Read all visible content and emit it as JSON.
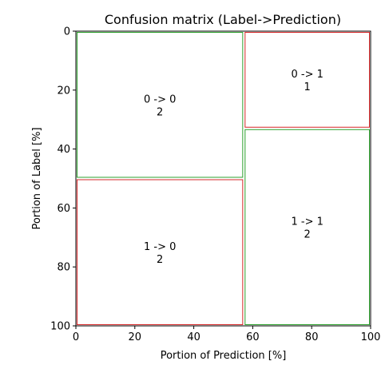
{
  "chart_data": {
    "type": "mosaic",
    "title": "Confusion matrix (Label->Prediction)",
    "xlabel": "Portion of Prediction [%]",
    "ylabel": "Portion of Label [%]",
    "xlim": [
      0,
      100
    ],
    "ylim": [
      100,
      0
    ],
    "xticks": [
      "0",
      "20",
      "40",
      "60",
      "80",
      "100"
    ],
    "yticks": [
      "0",
      "20",
      "40",
      "60",
      "80",
      "100"
    ],
    "grid": false,
    "colors": {
      "correct": "#2ca02c",
      "incorrect": "#d62728"
    },
    "cells": [
      {
        "label": "0",
        "prediction": "0",
        "text": "0 -> 0",
        "count": "2",
        "correct": true,
        "x0": 0,
        "x1": 57,
        "y0": 0,
        "y1": 50
      },
      {
        "label": "0",
        "prediction": "1",
        "text": "0 -> 1",
        "count": "1",
        "correct": false,
        "x0": 57,
        "x1": 100,
        "y0": 0,
        "y1": 33
      },
      {
        "label": "1",
        "prediction": "0",
        "text": "1 -> 0",
        "count": "2",
        "correct": false,
        "x0": 0,
        "x1": 57,
        "y0": 50,
        "y1": 100
      },
      {
        "label": "1",
        "prediction": "1",
        "text": "1 -> 1",
        "count": "2",
        "correct": true,
        "x0": 57,
        "x1": 100,
        "y0": 33,
        "y1": 100
      }
    ]
  }
}
